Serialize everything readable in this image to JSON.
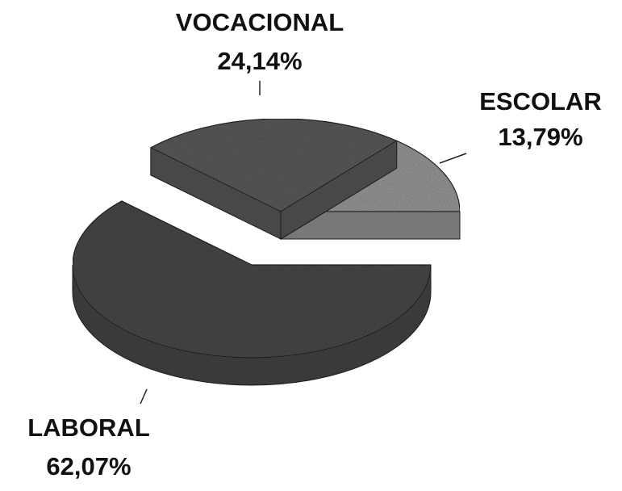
{
  "chart_data": {
    "type": "pie3d",
    "categories": [
      "ESCOLAR",
      "VOCACIONAL",
      "LABORAL"
    ],
    "values": [
      13.79,
      24.14,
      62.07
    ],
    "value_labels": [
      "13,79%",
      "24,14%",
      "62,07%"
    ],
    "colors": [
      "#9a9a9a",
      "#5c5c5c",
      "#4a4a4a"
    ]
  }
}
